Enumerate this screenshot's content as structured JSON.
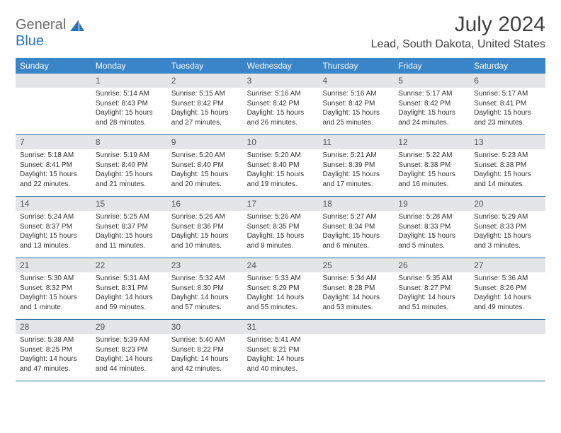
{
  "logo": {
    "part1": "General",
    "part2": "Blue"
  },
  "title": "July 2024",
  "location": "Lead, South Dakota, United States",
  "colors": {
    "header_bg": "#3a84c8",
    "header_text": "#ffffff",
    "daynum_bg": "#e4e5e6",
    "row_border": "#2b6aa6",
    "body_text": "#333333",
    "title_text": "#414141",
    "logo_gray": "#6a6a6a",
    "logo_blue": "#2b74b8"
  },
  "weekdays": [
    "Sunday",
    "Monday",
    "Tuesday",
    "Wednesday",
    "Thursday",
    "Friday",
    "Saturday"
  ],
  "weeks": [
    [
      null,
      {
        "n": "1",
        "sr": "5:14 AM",
        "ss": "8:43 PM",
        "dl": "15 hours and 28 minutes."
      },
      {
        "n": "2",
        "sr": "5:15 AM",
        "ss": "8:42 PM",
        "dl": "15 hours and 27 minutes."
      },
      {
        "n": "3",
        "sr": "5:16 AM",
        "ss": "8:42 PM",
        "dl": "15 hours and 26 minutes."
      },
      {
        "n": "4",
        "sr": "5:16 AM",
        "ss": "8:42 PM",
        "dl": "15 hours and 25 minutes."
      },
      {
        "n": "5",
        "sr": "5:17 AM",
        "ss": "8:42 PM",
        "dl": "15 hours and 24 minutes."
      },
      {
        "n": "6",
        "sr": "5:17 AM",
        "ss": "8:41 PM",
        "dl": "15 hours and 23 minutes."
      }
    ],
    [
      {
        "n": "7",
        "sr": "5:18 AM",
        "ss": "8:41 PM",
        "dl": "15 hours and 22 minutes."
      },
      {
        "n": "8",
        "sr": "5:19 AM",
        "ss": "8:40 PM",
        "dl": "15 hours and 21 minutes."
      },
      {
        "n": "9",
        "sr": "5:20 AM",
        "ss": "8:40 PM",
        "dl": "15 hours and 20 minutes."
      },
      {
        "n": "10",
        "sr": "5:20 AM",
        "ss": "8:40 PM",
        "dl": "15 hours and 19 minutes."
      },
      {
        "n": "11",
        "sr": "5:21 AM",
        "ss": "8:39 PM",
        "dl": "15 hours and 17 minutes."
      },
      {
        "n": "12",
        "sr": "5:22 AM",
        "ss": "8:38 PM",
        "dl": "15 hours and 16 minutes."
      },
      {
        "n": "13",
        "sr": "5:23 AM",
        "ss": "8:38 PM",
        "dl": "15 hours and 14 minutes."
      }
    ],
    [
      {
        "n": "14",
        "sr": "5:24 AM",
        "ss": "8:37 PM",
        "dl": "15 hours and 13 minutes."
      },
      {
        "n": "15",
        "sr": "5:25 AM",
        "ss": "8:37 PM",
        "dl": "15 hours and 11 minutes."
      },
      {
        "n": "16",
        "sr": "5:26 AM",
        "ss": "8:36 PM",
        "dl": "15 hours and 10 minutes."
      },
      {
        "n": "17",
        "sr": "5:26 AM",
        "ss": "8:35 PM",
        "dl": "15 hours and 8 minutes."
      },
      {
        "n": "18",
        "sr": "5:27 AM",
        "ss": "8:34 PM",
        "dl": "15 hours and 6 minutes."
      },
      {
        "n": "19",
        "sr": "5:28 AM",
        "ss": "8:33 PM",
        "dl": "15 hours and 5 minutes."
      },
      {
        "n": "20",
        "sr": "5:29 AM",
        "ss": "8:33 PM",
        "dl": "15 hours and 3 minutes."
      }
    ],
    [
      {
        "n": "21",
        "sr": "5:30 AM",
        "ss": "8:32 PM",
        "dl": "15 hours and 1 minute."
      },
      {
        "n": "22",
        "sr": "5:31 AM",
        "ss": "8:31 PM",
        "dl": "14 hours and 59 minutes."
      },
      {
        "n": "23",
        "sr": "5:32 AM",
        "ss": "8:30 PM",
        "dl": "14 hours and 57 minutes."
      },
      {
        "n": "24",
        "sr": "5:33 AM",
        "ss": "8:29 PM",
        "dl": "14 hours and 55 minutes."
      },
      {
        "n": "25",
        "sr": "5:34 AM",
        "ss": "8:28 PM",
        "dl": "14 hours and 53 minutes."
      },
      {
        "n": "26",
        "sr": "5:35 AM",
        "ss": "8:27 PM",
        "dl": "14 hours and 51 minutes."
      },
      {
        "n": "27",
        "sr": "5:36 AM",
        "ss": "8:26 PM",
        "dl": "14 hours and 49 minutes."
      }
    ],
    [
      {
        "n": "28",
        "sr": "5:38 AM",
        "ss": "8:25 PM",
        "dl": "14 hours and 47 minutes."
      },
      {
        "n": "29",
        "sr": "5:39 AM",
        "ss": "8:23 PM",
        "dl": "14 hours and 44 minutes."
      },
      {
        "n": "30",
        "sr": "5:40 AM",
        "ss": "8:22 PM",
        "dl": "14 hours and 42 minutes."
      },
      {
        "n": "31",
        "sr": "5:41 AM",
        "ss": "8:21 PM",
        "dl": "14 hours and 40 minutes."
      },
      null,
      null,
      null
    ]
  ],
  "labels": {
    "sunrise": "Sunrise:",
    "sunset": "Sunset:",
    "daylight": "Daylight:"
  }
}
